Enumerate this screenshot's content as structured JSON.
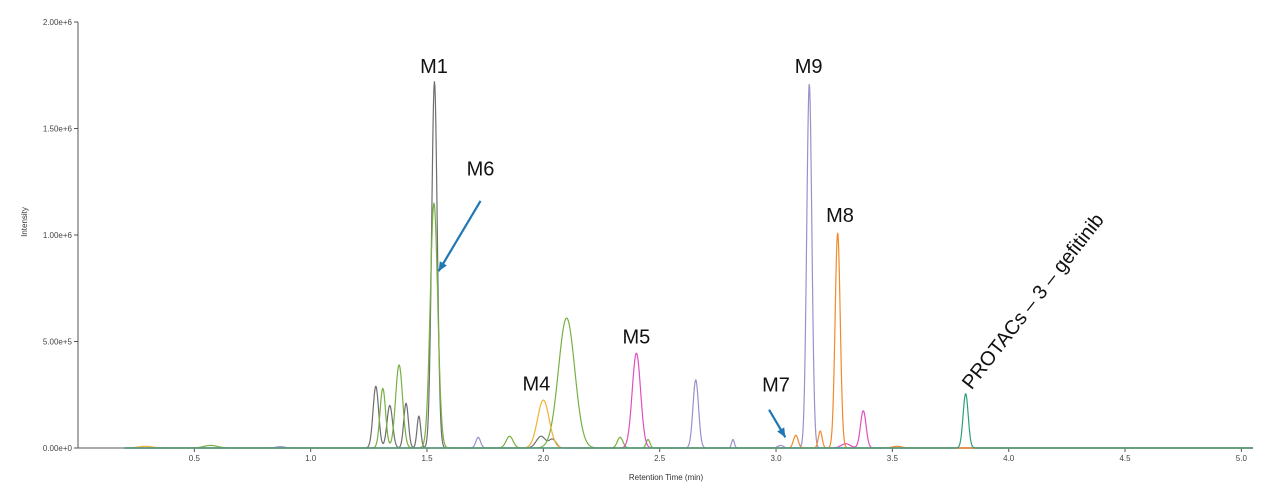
{
  "chart_data": {
    "type": "line",
    "title": "",
    "xlabel": "Retention Time (min)",
    "ylabel": "Intensity",
    "xlim": [
      0.0,
      5.05
    ],
    "ylim": [
      0,
      2000000
    ],
    "x_ticks": [
      {
        "value": 0.5,
        "label": "0.5"
      },
      {
        "value": 1.0,
        "label": "1.0"
      },
      {
        "value": 1.5,
        "label": "1.5"
      },
      {
        "value": 2.0,
        "label": "2.0"
      },
      {
        "value": 2.5,
        "label": "2.5"
      },
      {
        "value": 3.0,
        "label": "3.0"
      },
      {
        "value": 3.5,
        "label": "3.5"
      },
      {
        "value": 4.0,
        "label": "4.0"
      },
      {
        "value": 4.5,
        "label": "4.5"
      },
      {
        "value": 5.0,
        "label": "5.0"
      }
    ],
    "y_ticks": [
      {
        "value": 0,
        "label": "0.00e+0"
      },
      {
        "value": 500000,
        "label": "5.00e+5"
      },
      {
        "value": 1000000,
        "label": "1.00e+6"
      },
      {
        "value": 1500000,
        "label": "1.50e+6"
      },
      {
        "value": 2000000,
        "label": "2.00e+6"
      }
    ],
    "grid": false,
    "series": [
      {
        "color": "#6e6e6e",
        "peaks": [
          [
            1.28,
            290000,
            0.012
          ],
          [
            1.34,
            200000,
            0.012
          ],
          [
            1.41,
            210000,
            0.01
          ],
          [
            1.465,
            150000,
            0.008
          ],
          [
            1.532,
            1720000,
            0.012
          ],
          [
            1.99,
            55000,
            0.02
          ],
          [
            2.04,
            40000,
            0.015
          ]
        ]
      },
      {
        "color": "#77b043",
        "peaks": [
          [
            1.31,
            280000,
            0.012
          ],
          [
            1.38,
            390000,
            0.015
          ],
          [
            1.53,
            1150000,
            0.016
          ],
          [
            1.855,
            55000,
            0.015
          ],
          [
            2.1,
            610000,
            0.035
          ],
          [
            2.33,
            50000,
            0.012
          ],
          [
            2.45,
            40000,
            0.008
          ],
          [
            0.57,
            12000,
            0.03
          ]
        ]
      },
      {
        "color": "#f2b134",
        "peaks": [
          [
            2.0,
            225000,
            0.025
          ],
          [
            0.29,
            8000,
            0.03
          ]
        ]
      },
      {
        "color": "#e04fc0",
        "peaks": [
          [
            2.4,
            445000,
            0.018
          ],
          [
            3.375,
            175000,
            0.012
          ],
          [
            3.3,
            20000,
            0.02
          ]
        ]
      },
      {
        "color": "#9b8fcc",
        "peaks": [
          [
            1.72,
            50000,
            0.01
          ],
          [
            2.655,
            320000,
            0.012
          ],
          [
            2.815,
            40000,
            0.006
          ],
          [
            3.02,
            12000,
            0.012
          ],
          [
            3.143,
            1710000,
            0.011
          ],
          [
            0.87,
            6000,
            0.02
          ]
        ]
      },
      {
        "color": "#f08a2c",
        "peaks": [
          [
            3.085,
            60000,
            0.01
          ],
          [
            3.19,
            80000,
            0.008
          ],
          [
            3.265,
            1010000,
            0.011
          ],
          [
            3.52,
            8000,
            0.02
          ]
        ]
      },
      {
        "color": "#2c9f7e",
        "peaks": [
          [
            3.815,
            255000,
            0.011
          ]
        ]
      }
    ],
    "annotations": [
      {
        "text": "M1",
        "x": 1.53,
        "y": 1760000
      },
      {
        "text": "M6",
        "x": 1.73,
        "y": 1280000
      },
      {
        "text": "M4",
        "x": 1.97,
        "y": 270000
      },
      {
        "text": "M5",
        "x": 2.4,
        "y": 490000
      },
      {
        "text": "M7",
        "x": 3.0,
        "y": 265000
      },
      {
        "text": "M9",
        "x": 3.14,
        "y": 1760000
      },
      {
        "text": "M8",
        "x": 3.275,
        "y": 1060000
      },
      {
        "text": "PROTACs – 3 – gefitinib",
        "x": 3.84,
        "y": 270000,
        "rotate": -52
      }
    ],
    "arrows": [
      {
        "from": [
          1.73,
          1160000
        ],
        "to": [
          1.55,
          830000
        ],
        "color": "#1f77b4"
      },
      {
        "from": [
          2.97,
          180000
        ],
        "to": [
          3.04,
          50000
        ],
        "color": "#1f77b4"
      }
    ]
  }
}
